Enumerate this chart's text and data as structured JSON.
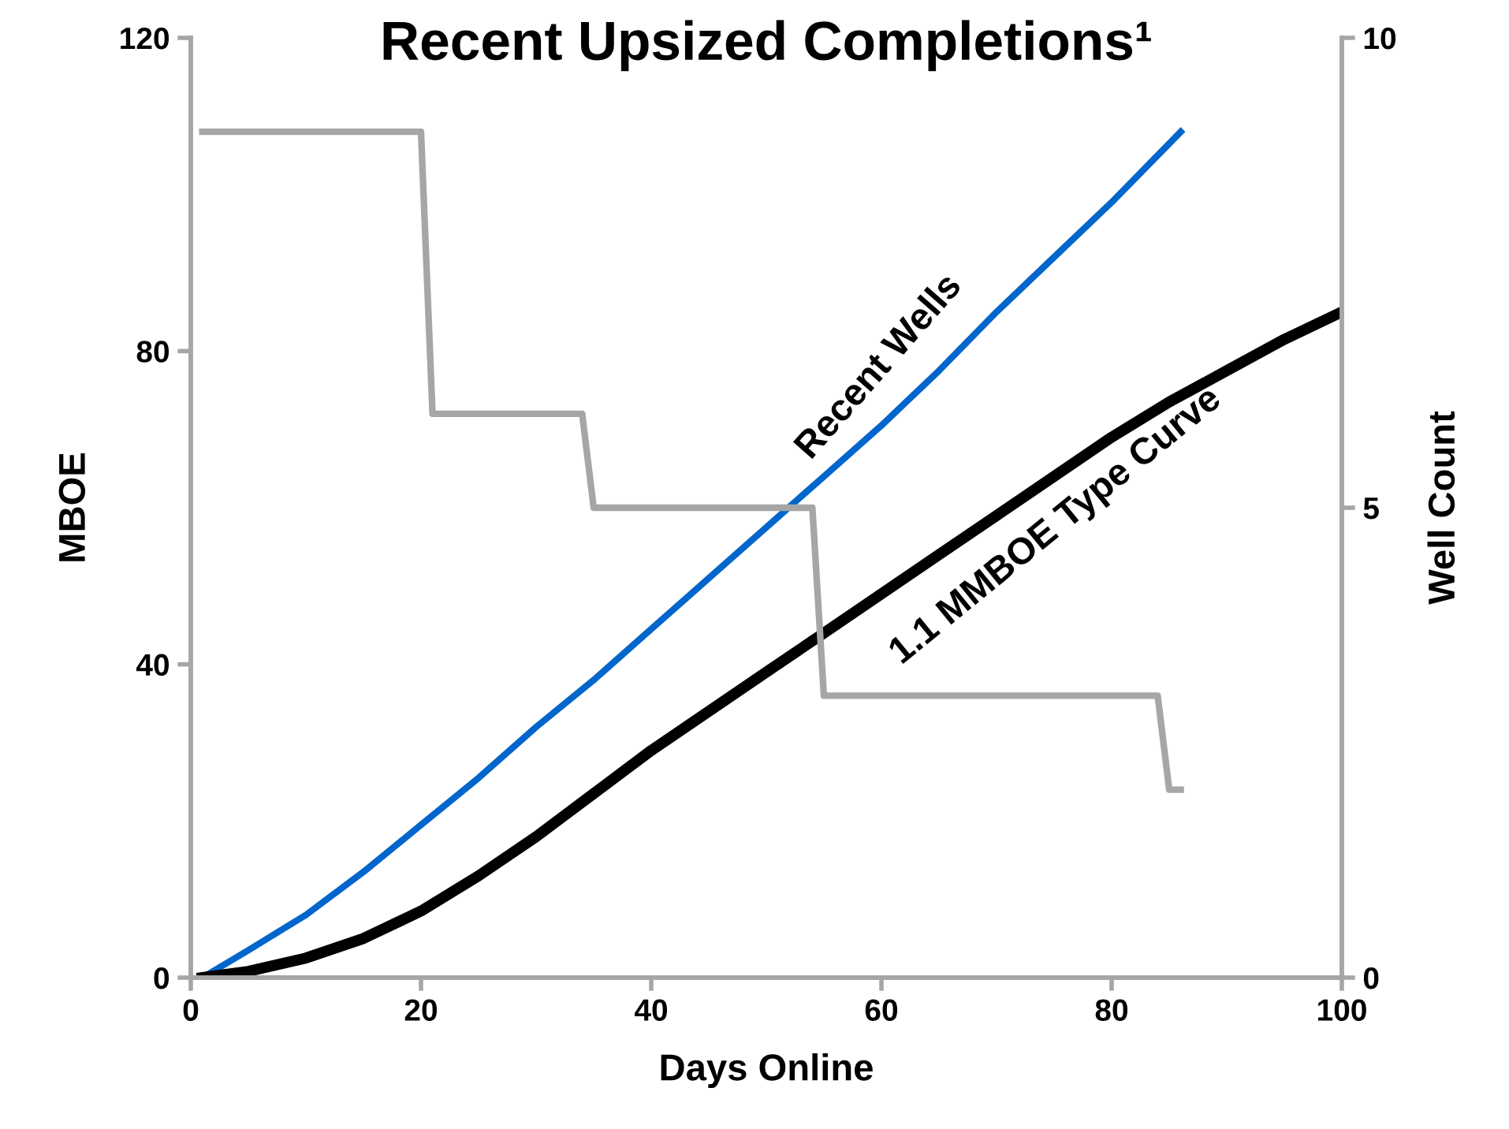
{
  "chart_data": {
    "type": "line",
    "title": "Recent Upsized Completions¹",
    "xlabel": "Days Online",
    "ylabel": "MBOE",
    "y2label": "Well Count",
    "xlim": [
      0,
      100
    ],
    "xticks": [
      0,
      20,
      40,
      60,
      80,
      100
    ],
    "ylim": [
      0,
      120
    ],
    "yticks": [
      0,
      40,
      80,
      120
    ],
    "y2lim": [
      0,
      10
    ],
    "y2ticks": [
      0,
      5,
      10
    ],
    "grid": false,
    "legend": false,
    "series": [
      {
        "name": "Recent Wells",
        "color": "#0066cc",
        "x": [
          1,
          5,
          10,
          15,
          20,
          25,
          30,
          35,
          40,
          45,
          50,
          55,
          60,
          65,
          70,
          75,
          80,
          86
        ],
        "values": [
          0,
          3.5,
          8,
          13.5,
          19.5,
          25.5,
          32,
          38,
          44.5,
          51,
          57.5,
          64,
          70.5,
          77.5,
          85,
          92,
          99,
          108
        ]
      },
      {
        "name": "1.1 MMBOE Type Curve",
        "color": "#000000",
        "x": [
          1,
          5,
          10,
          15,
          20,
          25,
          30,
          35,
          40,
          45,
          50,
          55,
          60,
          65,
          70,
          75,
          80,
          85,
          90,
          95,
          100
        ],
        "values": [
          0,
          0.8,
          2.5,
          5,
          8.5,
          13,
          18,
          23.5,
          29,
          34,
          39,
          44,
          49,
          54,
          59,
          64,
          69,
          73.5,
          77.5,
          81.5,
          85
        ]
      },
      {
        "type": "step",
        "axis": "y2",
        "color": "#a6a6a6",
        "x": [
          1,
          20,
          21,
          34,
          35,
          54,
          55,
          84,
          85,
          86
        ],
        "values": [
          9,
          9,
          6,
          6,
          5,
          5,
          3,
          3,
          2,
          2
        ]
      }
    ]
  }
}
